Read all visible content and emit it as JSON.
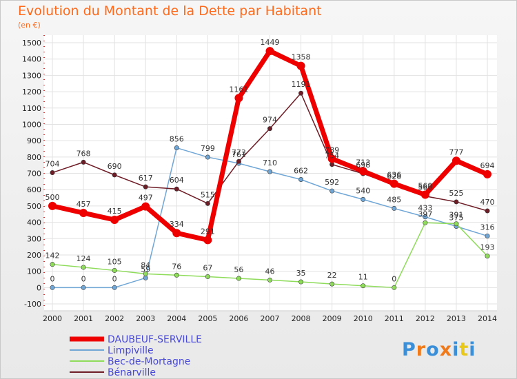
{
  "chart_data": {
    "type": "line",
    "title": "Evolution du Montant de la Dette par Habitant",
    "subtitle": "(en €)",
    "x": [
      "2000",
      "2001",
      "2002",
      "2003",
      "2004",
      "2005",
      "2006",
      "2007",
      "2008",
      "2009",
      "2010",
      "2011",
      "2012",
      "2013",
      "2014"
    ],
    "yticks": [
      -100,
      0,
      100,
      200,
      300,
      400,
      500,
      600,
      700,
      800,
      900,
      1000,
      1100,
      1200,
      1300,
      1400,
      1500
    ],
    "ylim": [
      -100,
      1550
    ],
    "series": [
      {
        "name": "DAUBEUF-SERVILLE",
        "color": "#ee0000",
        "values": [
          500,
          457,
          415,
          497,
          334,
          291,
          1161,
          1449,
          1358,
          789,
          713,
          636,
          569,
          777,
          694
        ]
      },
      {
        "name": "Limpiville",
        "color": "#6fa6d6",
        "values": [
          0,
          0,
          0,
          59,
          856,
          799,
          761,
          710,
          662,
          592,
          540,
          485,
          433,
          375,
          316
        ]
      },
      {
        "name": "Bec-de-Mortagne",
        "color": "#8edc5a",
        "values": [
          142,
          124,
          105,
          84,
          76,
          67,
          56,
          46,
          35,
          22,
          11,
          0,
          397,
          391,
          193
        ]
      },
      {
        "name": "Bénarville",
        "color": "#6e1c26",
        "values": [
          704,
          768,
          690,
          617,
          604,
          515,
          773,
          974,
          1191,
          754,
          698,
          628,
          560,
          525,
          470
        ]
      }
    ]
  },
  "logo_text": "Proxiti",
  "logo_colors": [
    "#3a8fd8",
    "#f07a1a",
    "#3a8fd8",
    "#f07a1a",
    "#3a8fd8",
    "#e8c81a",
    "#3a8fd8"
  ]
}
